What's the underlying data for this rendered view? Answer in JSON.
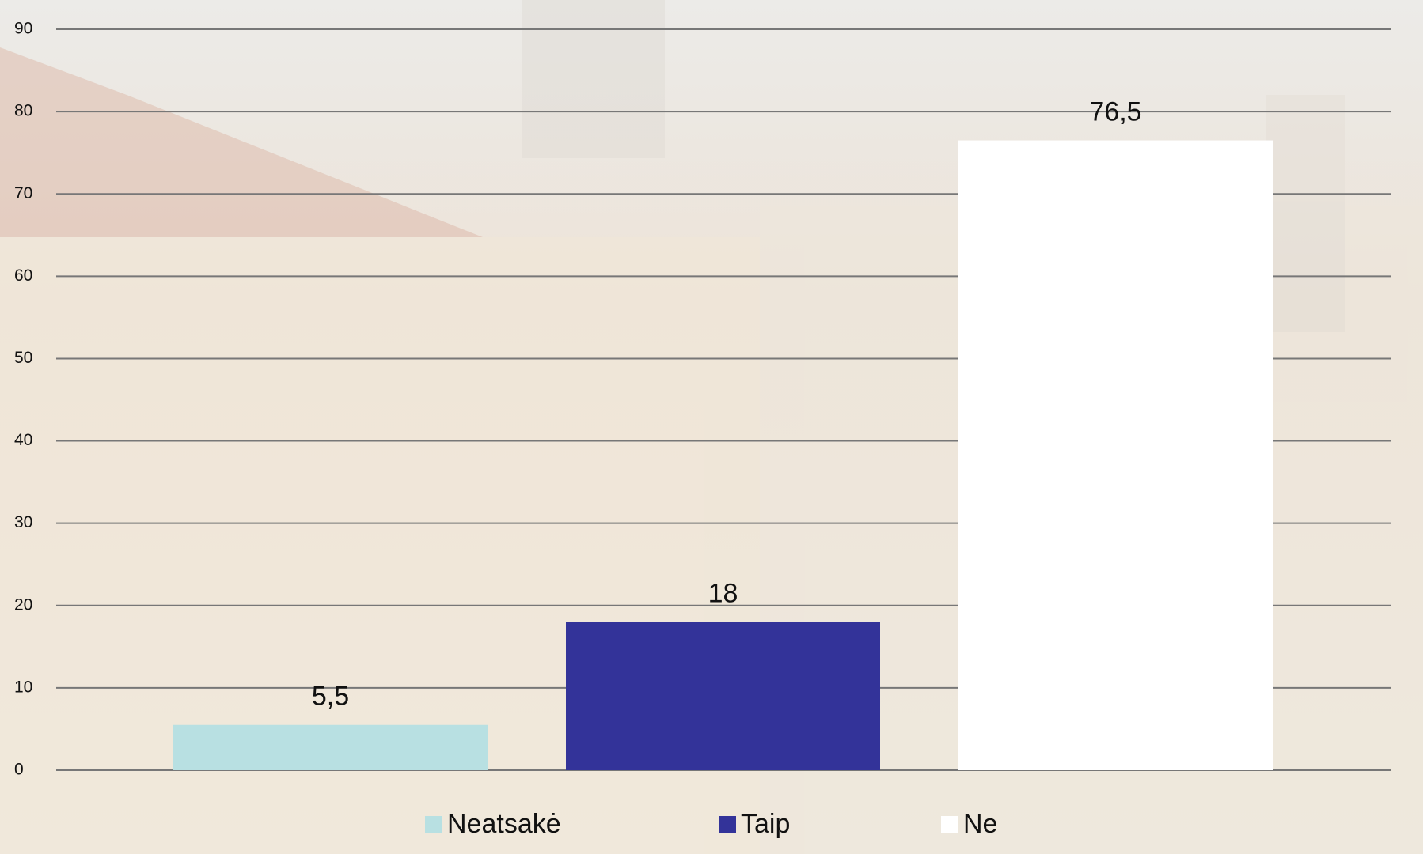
{
  "chart_data": {
    "type": "bar",
    "series": [
      {
        "name": "Neatsakė",
        "color": "#b8e0e2",
        "values": [
          5.5
        ],
        "value_labels": [
          "5,5"
        ]
      },
      {
        "name": "Taip",
        "color": "#333399",
        "values": [
          18
        ]
      },
      {
        "name": "Ne",
        "color": "#ffffff",
        "values": [
          76.5
        ],
        "value_labels": [
          "76,5"
        ]
      }
    ],
    "ylim": [
      0,
      90
    ],
    "yticks": [
      0,
      10,
      20,
      30,
      40,
      50,
      60,
      70,
      80,
      90
    ],
    "grid": true,
    "legend": "bottom"
  }
}
